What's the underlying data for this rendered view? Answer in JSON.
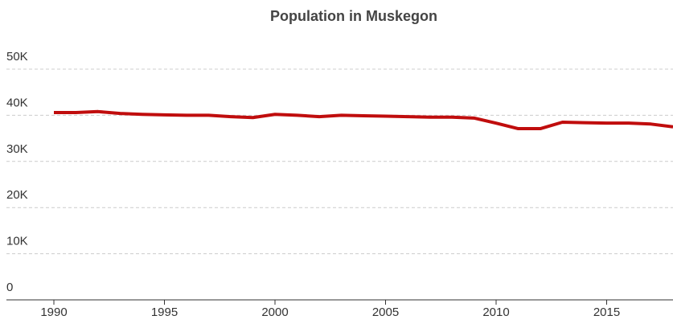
{
  "chart_data": {
    "type": "line",
    "title": "Population in Muskegon",
    "x": [
      1990,
      1991,
      1992,
      1993,
      1994,
      1995,
      1996,
      1997,
      1998,
      1999,
      2000,
      2001,
      2002,
      2003,
      2004,
      2005,
      2006,
      2007,
      2008,
      2009,
      2010,
      2011,
      2012,
      2013,
      2014,
      2015,
      2016,
      2017,
      2018
    ],
    "series": [
      {
        "name": "Population",
        "color": "#c00d0d",
        "values": [
          40600,
          40600,
          40800,
          40400,
          40200,
          40100,
          40000,
          40000,
          39700,
          39500,
          40200,
          40000,
          39700,
          40000,
          39900,
          39800,
          39700,
          39600,
          39600,
          39400,
          38300,
          37100,
          37100,
          38500,
          38400,
          38300,
          38300,
          38100,
          37500
        ]
      }
    ],
    "xlim": [
      1990,
      2018
    ],
    "xticks": [
      1990,
      1995,
      2000,
      2005,
      2010,
      2015
    ],
    "ylim": [
      0,
      50000
    ],
    "yticks": [
      0,
      {
        "value": 10000,
        "label": "10K"
      },
      {
        "value": 20000,
        "label": "20K"
      },
      {
        "value": 30000,
        "label": "30K"
      },
      {
        "value": 40000,
        "label": "40K"
      },
      {
        "value": 50000,
        "label": "50K"
      }
    ],
    "grid": true
  }
}
